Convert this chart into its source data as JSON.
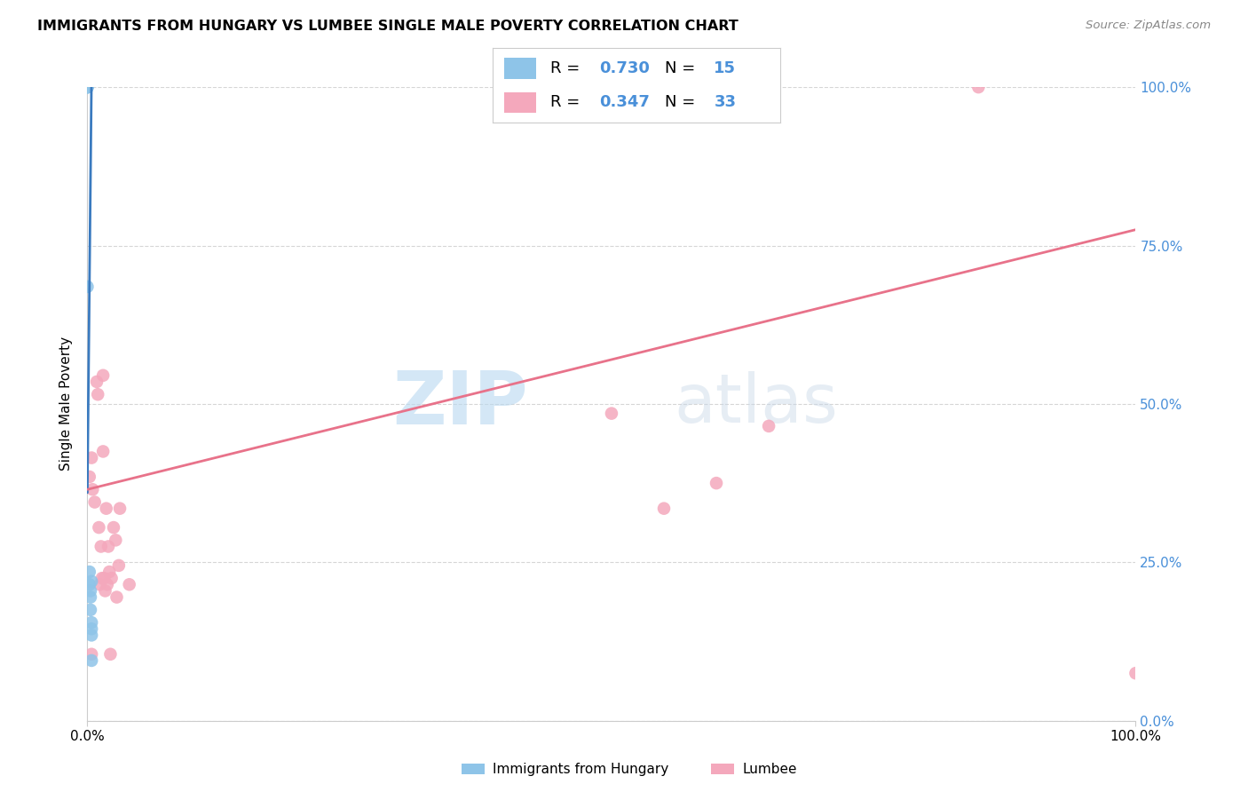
{
  "title": "IMMIGRANTS FROM HUNGARY VS LUMBEE SINGLE MALE POVERTY CORRELATION CHART",
  "source": "Source: ZipAtlas.com",
  "ylabel": "Single Male Poverty",
  "ytick_labels": [
    "0.0%",
    "25.0%",
    "50.0%",
    "75.0%",
    "100.0%"
  ],
  "ytick_values": [
    0.0,
    0.25,
    0.5,
    0.75,
    1.0
  ],
  "xtick_labels": [
    "0.0%",
    "100.0%"
  ],
  "xtick_values": [
    0.0,
    1.0
  ],
  "legend_label1": "Immigrants from Hungary",
  "legend_label2": "Lumbee",
  "R1": 0.73,
  "N1": 15,
  "R2": 0.347,
  "N2": 33,
  "color_blue": "#8ec4e8",
  "color_blue_line": "#3a7abf",
  "color_pink": "#f4a8bc",
  "color_pink_line": "#e8728a",
  "color_blue_text": "#4a90d9",
  "watermark_zip": "ZIP",
  "watermark_atlas": "atlas",
  "blue_points_x": [
    0.0,
    0.0,
    0.0,
    0.0,
    0.0,
    0.002,
    0.002,
    0.003,
    0.003,
    0.003,
    0.004,
    0.004,
    0.004,
    0.004,
    0.004
  ],
  "blue_points_y": [
    1.0,
    1.0,
    1.0,
    1.0,
    0.685,
    0.235,
    0.215,
    0.205,
    0.195,
    0.175,
    0.155,
    0.145,
    0.135,
    0.22,
    0.095
  ],
  "pink_points_x": [
    0.002,
    0.004,
    0.005,
    0.007,
    0.009,
    0.01,
    0.011,
    0.012,
    0.013,
    0.014,
    0.015,
    0.015,
    0.016,
    0.017,
    0.018,
    0.019,
    0.02,
    0.021,
    0.022,
    0.023,
    0.025,
    0.027,
    0.028,
    0.03,
    0.031,
    0.04,
    0.5,
    0.55,
    0.6,
    0.65,
    0.85,
    1.0,
    0.004
  ],
  "pink_points_y": [
    0.385,
    0.415,
    0.365,
    0.345,
    0.535,
    0.515,
    0.305,
    0.215,
    0.275,
    0.225,
    0.545,
    0.425,
    0.225,
    0.205,
    0.335,
    0.215,
    0.275,
    0.235,
    0.105,
    0.225,
    0.305,
    0.285,
    0.195,
    0.245,
    0.335,
    0.215,
    0.485,
    0.335,
    0.375,
    0.465,
    1.0,
    0.075,
    0.105
  ],
  "blue_line_x": [
    0.0,
    0.004
  ],
  "blue_line_y": [
    0.36,
    1.02
  ],
  "pink_line_x": [
    0.0,
    1.0
  ],
  "pink_line_y": [
    0.365,
    0.775
  ],
  "xlim": [
    0.0,
    1.0
  ],
  "ylim": [
    0.0,
    1.0
  ]
}
